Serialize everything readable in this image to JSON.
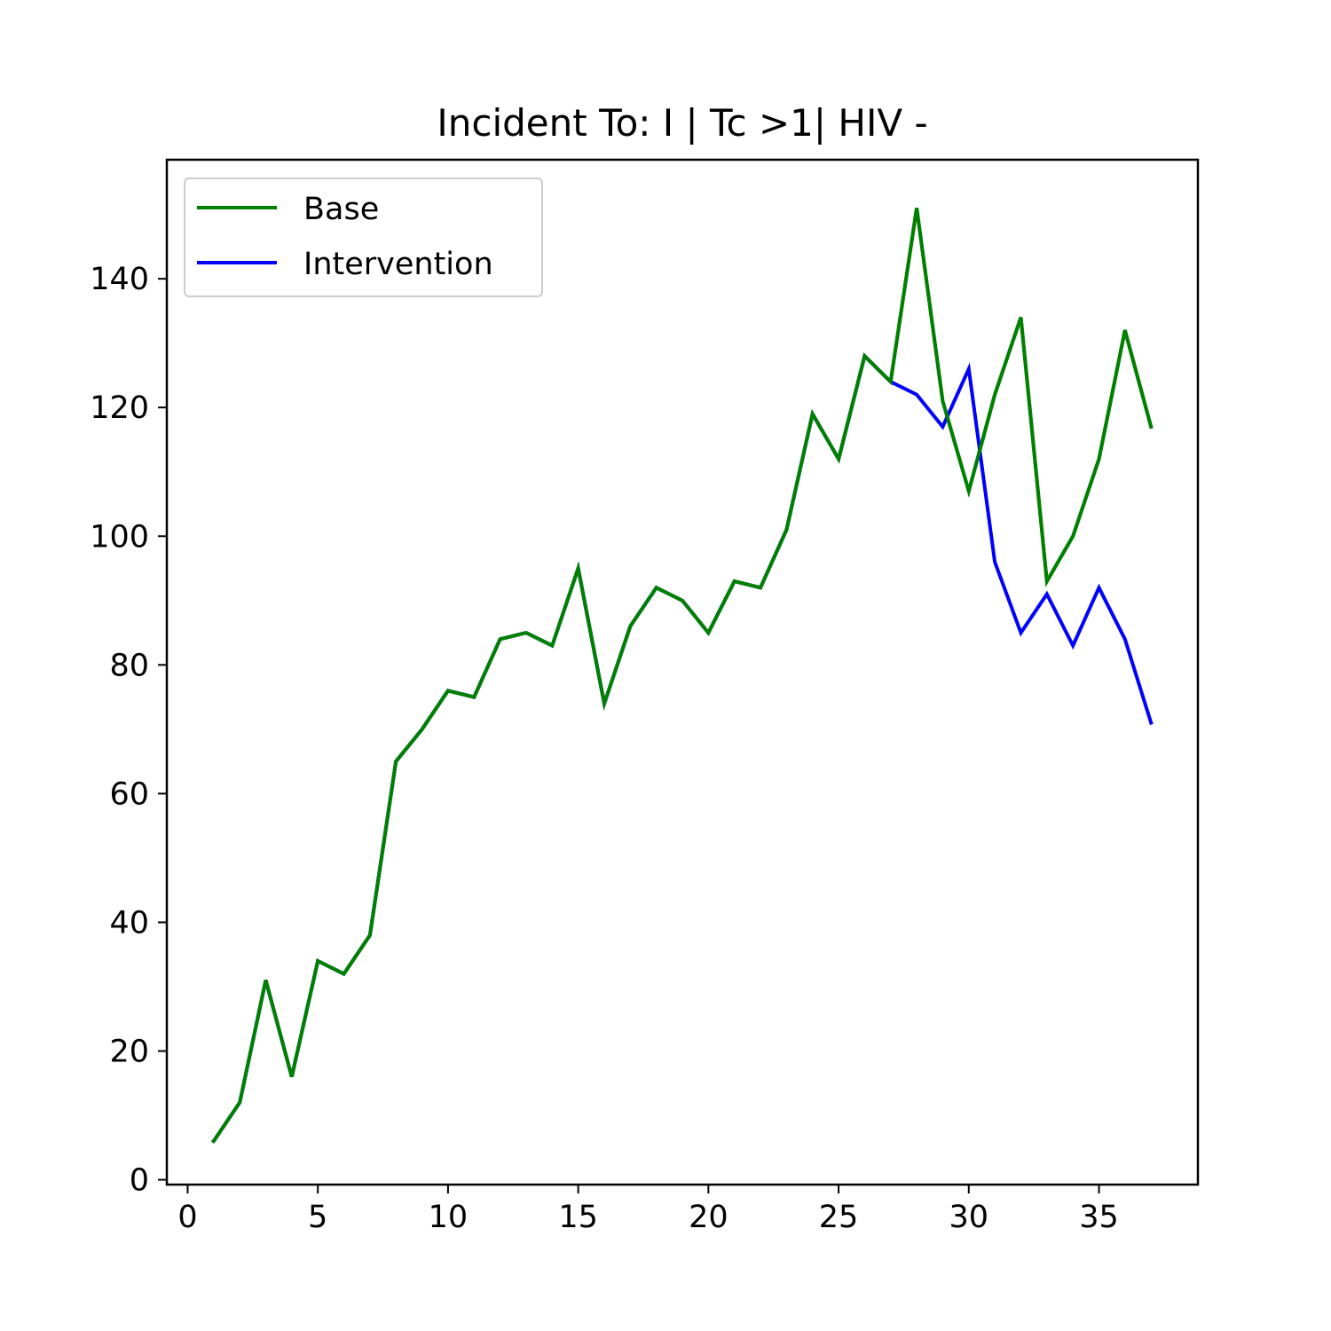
{
  "chart_data": {
    "type": "line",
    "title": "Incident To: I | Tc >1| HIV -",
    "xlabel": "",
    "ylabel": "",
    "xlim": [
      -0.8,
      38.8
    ],
    "ylim": [
      -0.75,
      158.5
    ],
    "xticks": [
      0,
      5,
      10,
      15,
      20,
      25,
      30,
      35
    ],
    "yticks": [
      0,
      20,
      40,
      60,
      80,
      100,
      120,
      140
    ],
    "grid": false,
    "legend_position": "top-left",
    "x": [
      1,
      2,
      3,
      4,
      5,
      6,
      7,
      8,
      9,
      10,
      11,
      12,
      13,
      14,
      15,
      16,
      17,
      18,
      19,
      20,
      21,
      22,
      23,
      24,
      25,
      26,
      27,
      28,
      29,
      30,
      31,
      32,
      33,
      34,
      35,
      36,
      37
    ],
    "series": [
      {
        "name": "Base",
        "color": "#008000",
        "values": [
          6,
          12,
          31,
          16,
          34,
          32,
          38,
          65,
          70,
          76,
          75,
          84,
          85,
          83,
          95,
          74,
          86,
          92,
          90,
          85,
          93,
          92,
          101,
          119,
          112,
          128,
          124,
          151,
          121,
          107,
          122,
          134,
          93,
          100,
          112,
          132,
          117
        ]
      },
      {
        "name": "Intervention",
        "color": "#0000ff",
        "values": [
          6,
          12,
          31,
          16,
          34,
          32,
          38,
          65,
          70,
          76,
          75,
          84,
          85,
          83,
          95,
          74,
          86,
          92,
          90,
          85,
          93,
          92,
          101,
          119,
          112,
          128,
          124,
          122,
          117,
          126,
          96,
          85,
          91,
          83,
          92,
          84,
          71
        ]
      }
    ]
  }
}
